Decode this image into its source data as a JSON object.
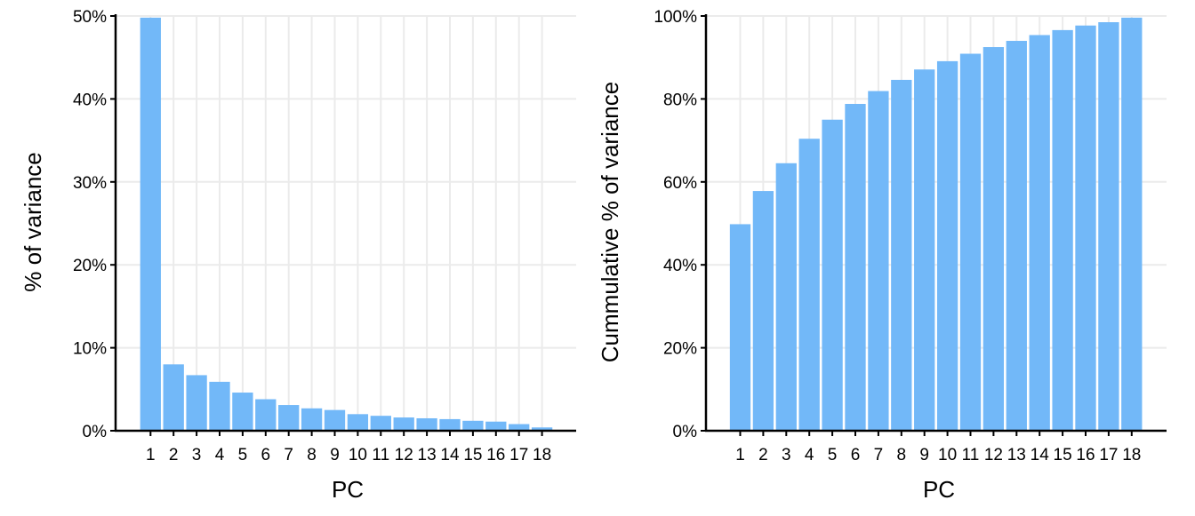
{
  "chart_data": [
    {
      "type": "bar",
      "categories": [
        "1",
        "2",
        "3",
        "4",
        "5",
        "6",
        "7",
        "8",
        "9",
        "10",
        "11",
        "12",
        "13",
        "14",
        "15",
        "16",
        "17",
        "18"
      ],
      "values": [
        49.8,
        8.0,
        6.7,
        5.9,
        4.6,
        3.8,
        3.1,
        2.7,
        2.5,
        2.0,
        1.8,
        1.6,
        1.5,
        1.4,
        1.2,
        1.1,
        0.8,
        0.4
      ],
      "xlabel": "PC",
      "ylabel": "% of variance",
      "ylim": [
        0,
        50
      ],
      "yticks": [
        0,
        10,
        20,
        30,
        40,
        50
      ],
      "ytick_labels": [
        "0%",
        "10%",
        "20%",
        "30%",
        "40%",
        "50%"
      ],
      "bar_color": "#72b8f8",
      "grid": true
    },
    {
      "type": "bar",
      "categories": [
        "1",
        "2",
        "3",
        "4",
        "5",
        "6",
        "7",
        "8",
        "9",
        "10",
        "11",
        "12",
        "13",
        "14",
        "15",
        "16",
        "17",
        "18"
      ],
      "values": [
        49.8,
        57.8,
        64.5,
        70.4,
        75.0,
        78.8,
        81.9,
        84.6,
        87.1,
        89.1,
        90.9,
        92.5,
        94.0,
        95.4,
        96.6,
        97.7,
        98.5,
        99.6
      ],
      "xlabel": "PC",
      "ylabel": "Cummulative % of variance",
      "ylim": [
        0,
        100
      ],
      "yticks": [
        0,
        20,
        40,
        60,
        80,
        100
      ],
      "ytick_labels": [
        "0%",
        "20%",
        "40%",
        "60%",
        "80%",
        "100%"
      ],
      "bar_color": "#72b8f8",
      "grid": true
    }
  ]
}
